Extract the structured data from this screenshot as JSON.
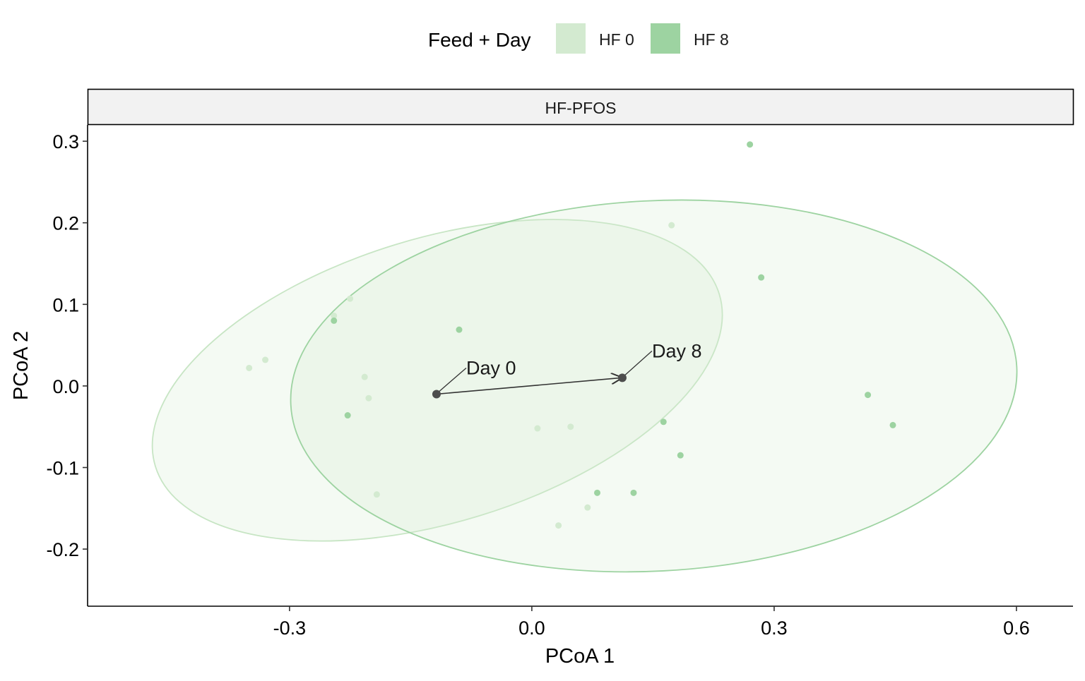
{
  "chart_data": {
    "type": "scatter",
    "legend": {
      "title": "Feed + Day",
      "position": "top",
      "entries": [
        {
          "label": "HF 0",
          "color": "#d3ead0"
        },
        {
          "label": "HF 8",
          "color": "#9dd3a1"
        }
      ]
    },
    "facet_label": "HF-PFOS",
    "xlabel": "PCoA 1",
    "ylabel": "PCoA 2",
    "xlim": [
      -0.55,
      0.67
    ],
    "ylim": [
      -0.27,
      0.32
    ],
    "x_ticks": [
      {
        "value": -0.3,
        "label": "-0.3"
      },
      {
        "value": 0.0,
        "label": "0.0"
      },
      {
        "value": 0.3,
        "label": "0.3"
      },
      {
        "value": 0.6,
        "label": "0.6"
      }
    ],
    "y_ticks": [
      {
        "value": 0.3,
        "label": "0.3"
      },
      {
        "value": 0.2,
        "label": "0.2"
      },
      {
        "value": 0.1,
        "label": "0.1"
      },
      {
        "value": 0.0,
        "label": "0.0"
      },
      {
        "value": -0.1,
        "label": "-0.1"
      },
      {
        "value": -0.2,
        "label": "-0.2"
      }
    ],
    "grid": false,
    "series": [
      {
        "name": "HF 0",
        "color": "#d3ead0",
        "points": [
          {
            "x": -0.35,
            "y": 0.022
          },
          {
            "x": -0.33,
            "y": 0.032
          },
          {
            "x": -0.245,
            "y": 0.086
          },
          {
            "x": -0.225,
            "y": 0.107
          },
          {
            "x": -0.207,
            "y": 0.011
          },
          {
            "x": -0.202,
            "y": -0.015
          },
          {
            "x": -0.192,
            "y": -0.133
          },
          {
            "x": 0.007,
            "y": -0.052
          },
          {
            "x": 0.048,
            "y": -0.05
          },
          {
            "x": 0.033,
            "y": -0.171
          },
          {
            "x": 0.069,
            "y": -0.149
          },
          {
            "x": 0.173,
            "y": 0.197
          }
        ]
      },
      {
        "name": "HF 8",
        "color": "#9dd3a1",
        "points": [
          {
            "x": -0.245,
            "y": 0.08
          },
          {
            "x": -0.228,
            "y": -0.036
          },
          {
            "x": -0.09,
            "y": 0.069
          },
          {
            "x": 0.081,
            "y": -0.131
          },
          {
            "x": 0.126,
            "y": -0.131
          },
          {
            "x": 0.163,
            "y": -0.044
          },
          {
            "x": 0.184,
            "y": -0.085
          },
          {
            "x": 0.27,
            "y": 0.296
          },
          {
            "x": 0.284,
            "y": 0.133
          },
          {
            "x": 0.416,
            "y": -0.011
          },
          {
            "x": 0.447,
            "y": -0.048
          }
        ]
      }
    ],
    "ellipses": [
      {
        "series": "HF 0",
        "cx": -0.117,
        "cy": 0.007,
        "rx": 0.365,
        "ry": 0.174,
        "rotation_deg": -17,
        "fill": "#d3ead0",
        "stroke": "#c7e5c4"
      },
      {
        "series": "HF 8",
        "cx": 0.151,
        "cy": 0.0,
        "rx": 0.45,
        "ry": 0.227,
        "rotation_deg": -3,
        "fill": "#d3ead0",
        "stroke": "#9dd3a1"
      }
    ],
    "centroids": [
      {
        "label": "Day 0",
        "x": -0.118,
        "y": -0.01
      },
      {
        "label": "Day 8",
        "x": 0.112,
        "y": 0.01
      }
    ]
  }
}
